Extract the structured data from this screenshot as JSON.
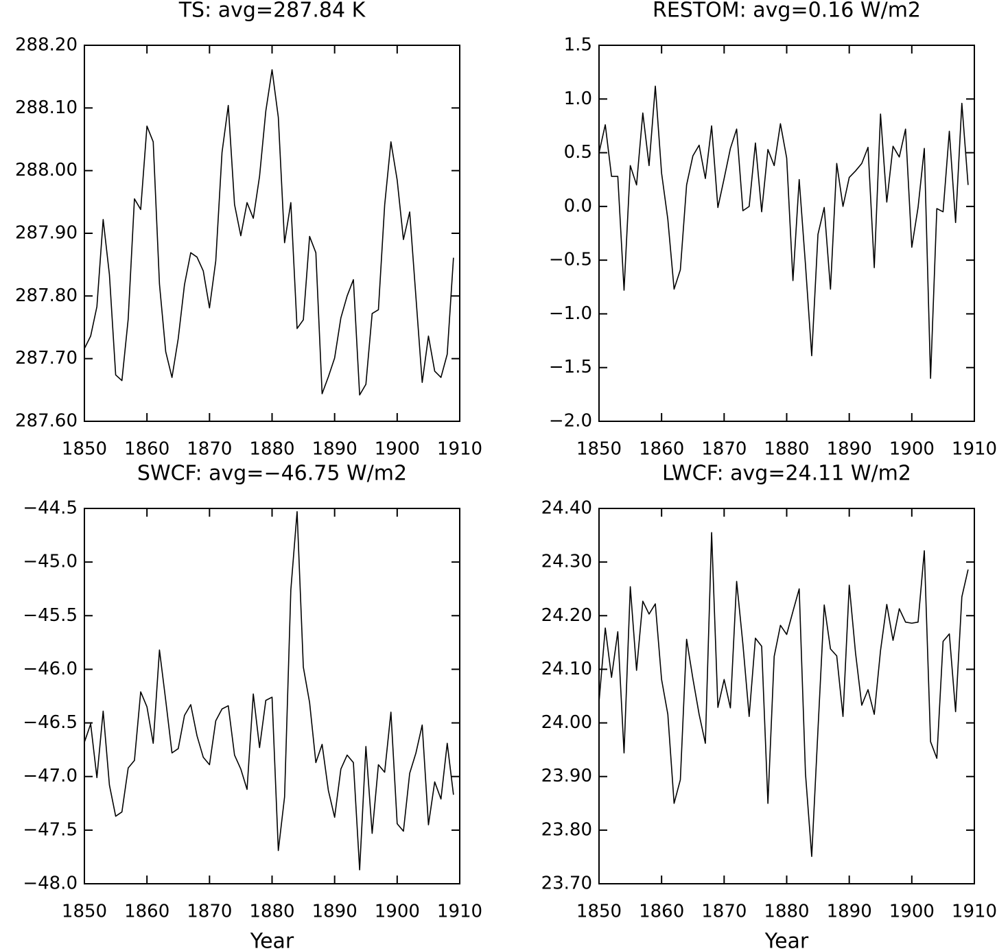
{
  "chart_data": [
    {
      "type": "line",
      "title": "TS: avg=287.84 K",
      "color": "#000000",
      "x": [
        1850,
        1851,
        1852,
        1853,
        1854,
        1855,
        1856,
        1857,
        1858,
        1859,
        1860,
        1861,
        1862,
        1863,
        1864,
        1865,
        1866,
        1867,
        1868,
        1869,
        1870,
        1871,
        1872,
        1873,
        1874,
        1875,
        1876,
        1877,
        1878,
        1879,
        1880,
        1881,
        1882,
        1883,
        1884,
        1885,
        1886,
        1887,
        1888,
        1889,
        1890,
        1891,
        1892,
        1893,
        1894,
        1895,
        1896,
        1897,
        1898,
        1899,
        1900,
        1901,
        1902,
        1903,
        1904,
        1905,
        1906,
        1907,
        1908,
        1909
      ],
      "values": [
        287.716,
        287.736,
        287.783,
        287.922,
        287.834,
        287.674,
        287.665,
        287.763,
        287.955,
        287.938,
        288.071,
        288.046,
        287.819,
        287.711,
        287.67,
        287.732,
        287.818,
        287.869,
        287.862,
        287.84,
        287.781,
        287.856,
        288.029,
        288.104,
        287.946,
        287.896,
        287.949,
        287.924,
        287.991,
        288.095,
        288.161,
        288.085,
        287.885,
        287.949,
        287.748,
        287.762,
        287.895,
        287.869,
        287.644,
        287.671,
        287.701,
        287.765,
        287.8,
        287.826,
        287.642,
        287.659,
        287.772,
        287.778,
        287.945,
        288.046,
        287.985,
        287.89,
        287.934,
        287.798,
        287.662,
        287.736,
        287.68,
        287.67,
        287.707,
        287.861
      ],
      "xlim": [
        1850,
        1910
      ],
      "xticks": [
        1850,
        1860,
        1870,
        1880,
        1890,
        1900,
        1910
      ],
      "ylim": [
        287.6,
        288.2
      ],
      "yticks": [
        {
          "value": 287.6,
          "label": "287.60"
        },
        {
          "value": 287.7,
          "label": "287.70"
        },
        {
          "value": 287.8,
          "label": "287.80"
        },
        {
          "value": 287.9,
          "label": "287.90"
        },
        {
          "value": 288.0,
          "label": "288.00"
        },
        {
          "value": 288.1,
          "label": "288.10"
        },
        {
          "value": 288.2,
          "label": "288.20"
        }
      ]
    },
    {
      "type": "line",
      "title": "RESTOM: avg=0.16 W/m2",
      "color": "#000000",
      "x": [
        1850,
        1851,
        1852,
        1853,
        1854,
        1855,
        1856,
        1857,
        1858,
        1859,
        1860,
        1861,
        1862,
        1863,
        1864,
        1865,
        1866,
        1867,
        1868,
        1869,
        1870,
        1871,
        1872,
        1873,
        1874,
        1875,
        1876,
        1877,
        1878,
        1879,
        1880,
        1881,
        1882,
        1883,
        1884,
        1885,
        1886,
        1887,
        1888,
        1889,
        1890,
        1891,
        1892,
        1893,
        1894,
        1895,
        1896,
        1897,
        1898,
        1899,
        1900,
        1901,
        1902,
        1903,
        1904,
        1905,
        1906,
        1907,
        1908,
        1909
      ],
      "values": [
        0.5,
        0.76,
        0.28,
        0.28,
        -0.78,
        0.38,
        0.2,
        0.87,
        0.38,
        1.12,
        0.31,
        -0.12,
        -0.77,
        -0.59,
        0.2,
        0.47,
        0.57,
        0.26,
        0.75,
        -0.01,
        0.26,
        0.54,
        0.72,
        -0.04,
        0.0,
        0.59,
        -0.05,
        0.53,
        0.38,
        0.77,
        0.45,
        -0.69,
        0.25,
        -0.54,
        -1.39,
        -0.26,
        -0.01,
        -0.77,
        0.4,
        0.0,
        0.27,
        0.33,
        0.4,
        0.55,
        -0.57,
        0.86,
        0.04,
        0.56,
        0.46,
        0.72,
        -0.38,
        -0.01,
        0.54,
        -1.6,
        -0.02,
        -0.05,
        0.7,
        -0.15,
        0.96,
        0.2
      ],
      "xlim": [
        1850,
        1910
      ],
      "xticks": [
        1850,
        1860,
        1870,
        1880,
        1890,
        1900,
        1910
      ],
      "ylim": [
        -2.0,
        1.5
      ],
      "yticks": [
        {
          "value": -2.0,
          "label": "−2.0"
        },
        {
          "value": -1.5,
          "label": "−1.5"
        },
        {
          "value": -1.0,
          "label": "−1.0"
        },
        {
          "value": -0.5,
          "label": "−0.5"
        },
        {
          "value": 0,
          "label": "0.0"
        },
        0.5,
        {
          "value": 1.0,
          "label": "1.0"
        },
        1.5
      ]
    },
    {
      "type": "line",
      "title": "SWCF: avg=−46.75 W/m2",
      "xlabel": "Year",
      "color": "#000000",
      "x": [
        1850,
        1851,
        1852,
        1853,
        1854,
        1855,
        1856,
        1857,
        1858,
        1859,
        1860,
        1861,
        1862,
        1863,
        1864,
        1865,
        1866,
        1867,
        1868,
        1869,
        1870,
        1871,
        1872,
        1873,
        1874,
        1875,
        1876,
        1877,
        1878,
        1879,
        1880,
        1881,
        1882,
        1883,
        1884,
        1885,
        1886,
        1887,
        1888,
        1889,
        1890,
        1891,
        1892,
        1893,
        1894,
        1895,
        1896,
        1897,
        1898,
        1899,
        1900,
        1901,
        1902,
        1903,
        1904,
        1905,
        1906,
        1907,
        1908,
        1909
      ],
      "values": [
        -46.68,
        -46.51,
        -47.01,
        -46.39,
        -47.08,
        -47.37,
        -47.33,
        -46.92,
        -46.85,
        -46.21,
        -46.35,
        -46.69,
        -45.82,
        -46.29,
        -46.78,
        -46.74,
        -46.43,
        -46.33,
        -46.62,
        -46.82,
        -46.89,
        -46.48,
        -46.37,
        -46.34,
        -46.8,
        -46.93,
        -47.12,
        -46.23,
        -46.73,
        -46.29,
        -46.26,
        -47.69,
        -47.19,
        -45.26,
        -44.53,
        -45.98,
        -46.31,
        -46.87,
        -46.7,
        -47.13,
        -47.38,
        -46.93,
        -46.8,
        -46.87,
        -47.87,
        -46.72,
        -47.53,
        -46.89,
        -46.96,
        -46.4,
        -47.44,
        -47.51,
        -46.97,
        -46.78,
        -46.52,
        -47.45,
        -47.05,
        -47.21,
        -46.69,
        -47.17
      ],
      "xlim": [
        1850,
        1910
      ],
      "xticks": [
        1850,
        1860,
        1870,
        1880,
        1890,
        1900,
        1910
      ],
      "ylim": [
        -48.0,
        -44.5
      ],
      "yticks": [
        {
          "value": -48.0,
          "label": "−48.0"
        },
        {
          "value": -47.5,
          "label": "−47.5"
        },
        {
          "value": -47.0,
          "label": "−47.0"
        },
        {
          "value": -46.5,
          "label": "−46.5"
        },
        {
          "value": -46.0,
          "label": "−46.0"
        },
        {
          "value": -45.5,
          "label": "−45.5"
        },
        {
          "value": -45.0,
          "label": "−45.0"
        },
        {
          "value": -44.5,
          "label": "−44.5"
        }
      ]
    },
    {
      "type": "line",
      "title": "LWCF: avg=24.11 W/m2",
      "xlabel": "Year",
      "color": "#000000",
      "x": [
        1850,
        1851,
        1852,
        1853,
        1854,
        1855,
        1856,
        1857,
        1858,
        1859,
        1860,
        1861,
        1862,
        1863,
        1864,
        1865,
        1866,
        1867,
        1868,
        1869,
        1870,
        1871,
        1872,
        1873,
        1874,
        1875,
        1876,
        1877,
        1878,
        1879,
        1880,
        1881,
        1882,
        1883,
        1884,
        1885,
        1886,
        1887,
        1888,
        1889,
        1890,
        1891,
        1892,
        1893,
        1894,
        1895,
        1896,
        1897,
        1898,
        1899,
        1900,
        1901,
        1902,
        1903,
        1904,
        1905,
        1906,
        1907,
        1908,
        1909
      ],
      "values": [
        24.039,
        24.177,
        24.085,
        24.17,
        23.944,
        24.254,
        24.098,
        24.227,
        24.203,
        24.222,
        24.081,
        24.016,
        23.85,
        23.894,
        24.156,
        24.083,
        24.016,
        23.962,
        24.355,
        24.029,
        24.081,
        24.028,
        24.264,
        24.147,
        24.012,
        24.158,
        24.143,
        23.85,
        24.124,
        24.182,
        24.165,
        24.208,
        24.25,
        23.906,
        23.751,
        23.987,
        24.22,
        24.138,
        24.125,
        24.012,
        24.257,
        24.131,
        24.033,
        24.062,
        24.016,
        24.135,
        24.221,
        24.154,
        24.213,
        24.188,
        24.186,
        24.188,
        24.321,
        23.965,
        23.934,
        24.152,
        24.166,
        24.021,
        24.235,
        24.286
      ],
      "xlim": [
        1850,
        1910
      ],
      "xticks": [
        1850,
        1860,
        1870,
        1880,
        1890,
        1900,
        1910
      ],
      "ylim": [
        23.7,
        24.4
      ],
      "yticks": [
        {
          "value": 23.7,
          "label": "23.70"
        },
        {
          "value": 23.8,
          "label": "23.80"
        },
        {
          "value": 23.9,
          "label": "23.90"
        },
        {
          "value": 24.0,
          "label": "24.00"
        },
        {
          "value": 24.1,
          "label": "24.10"
        },
        {
          "value": 24.2,
          "label": "24.20"
        },
        {
          "value": 24.3,
          "label": "24.30"
        },
        {
          "value": 24.4,
          "label": "24.40"
        }
      ]
    }
  ]
}
